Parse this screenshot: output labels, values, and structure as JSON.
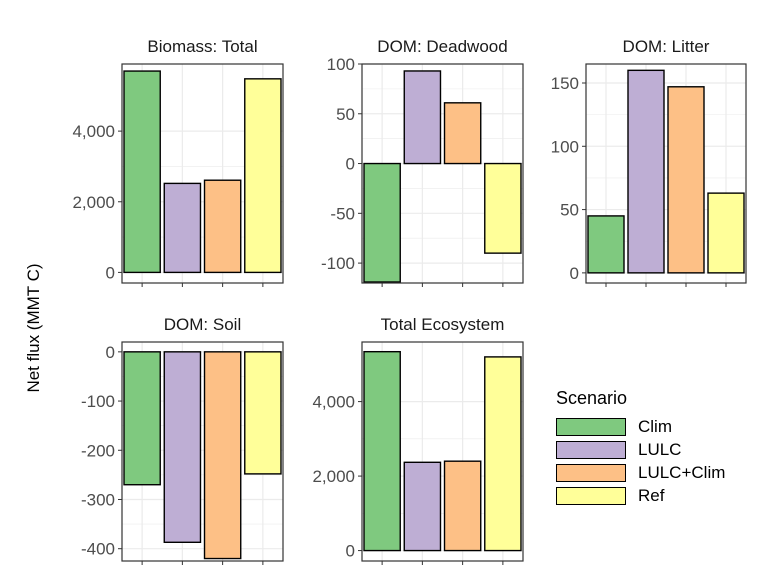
{
  "ylabel": "Net flux (MMT C)",
  "legend": {
    "title": "Scenario",
    "items": [
      {
        "label": "Clim",
        "color": "#7FC97F"
      },
      {
        "label": "LULC",
        "color": "#BEAED4"
      },
      {
        "label": "LULC+Clim",
        "color": "#FDC086"
      },
      {
        "label": "Ref",
        "color": "#FFFF99"
      }
    ]
  },
  "chart_data": [
    {
      "type": "bar",
      "title": "Biomass: Total",
      "categories": [
        "Clim",
        "LULC",
        "LULC+Clim",
        "Ref"
      ],
      "values": [
        5700,
        2520,
        2610,
        5480
      ],
      "ylim": [
        -300,
        5900
      ],
      "yticks": [
        0,
        2000,
        4000
      ],
      "ytick_labels": [
        "0",
        "2,000",
        "4,000"
      ]
    },
    {
      "type": "bar",
      "title": "DOM: Deadwood",
      "categories": [
        "Clim",
        "LULC",
        "LULC+Clim",
        "Ref"
      ],
      "values": [
        -119,
        93,
        61,
        -90
      ],
      "ylim": [
        -120,
        100
      ],
      "yticks": [
        -100,
        -50,
        0,
        50,
        100
      ],
      "ytick_labels": [
        "-100",
        "-50",
        "0",
        "50",
        "100"
      ]
    },
    {
      "type": "bar",
      "title": "DOM: Litter",
      "categories": [
        "Clim",
        "LULC",
        "LULC+Clim",
        "Ref"
      ],
      "values": [
        45,
        160,
        147,
        63
      ],
      "ylim": [
        -8,
        165
      ],
      "yticks": [
        0,
        50,
        100,
        150
      ],
      "ytick_labels": [
        "0",
        "50",
        "100",
        "150"
      ]
    },
    {
      "type": "bar",
      "title": "DOM: Soil",
      "categories": [
        "Clim",
        "LULC",
        "LULC+Clim",
        "Ref"
      ],
      "values": [
        -270,
        -387,
        -420,
        -248
      ],
      "ylim": [
        -425,
        20
      ],
      "yticks": [
        -400,
        -300,
        -200,
        -100,
        0
      ],
      "ytick_labels": [
        "-400",
        "-300",
        "-200",
        "-100",
        "0"
      ]
    },
    {
      "type": "bar",
      "title": "Total Ecosystem",
      "categories": [
        "Clim",
        "LULC",
        "LULC+Clim",
        "Ref"
      ],
      "values": [
        5340,
        2370,
        2400,
        5200
      ],
      "ylim": [
        -280,
        5600
      ],
      "yticks": [
        0,
        2000,
        4000
      ],
      "ytick_labels": [
        "0",
        "2,000",
        "4,000"
      ]
    }
  ]
}
